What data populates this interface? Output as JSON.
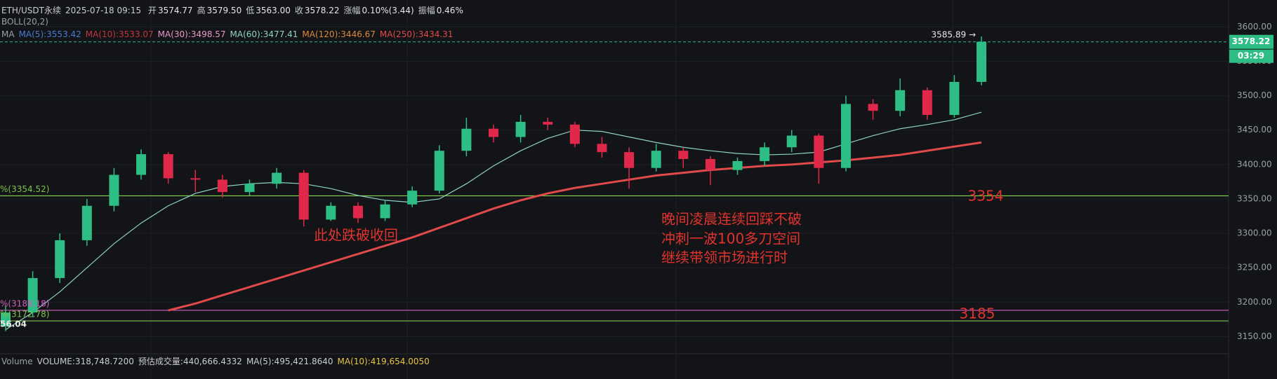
{
  "header": {
    "title": "ETH/USDT永续",
    "time": "2025-07-18 09:15",
    "ohlc": [
      {
        "label": "开",
        "value": "3574.77"
      },
      {
        "label": "高",
        "value": "3579.50"
      },
      {
        "label": "低",
        "value": "3563.00"
      },
      {
        "label": "收",
        "value": "3578.22"
      },
      {
        "label": "涨幅",
        "value": "0.10%(3.44)"
      },
      {
        "label": "振幅",
        "value": "0.46%"
      }
    ],
    "boll": "BOLL(20,2)",
    "ma_label": "MA",
    "ma_items": [
      {
        "text": "MA(5):3553.42",
        "color": "#4a7bd0"
      },
      {
        "text": "MA(10):3533.07",
        "color": "#c1363d"
      },
      {
        "text": "MA(30):3498.57",
        "color": "#e89ac8"
      },
      {
        "text": "MA(60):3477.41",
        "color": "#8fd3c2"
      },
      {
        "text": "MA(120):3446.67",
        "color": "#d98b3a"
      },
      {
        "text": "MA(250):3434.31",
        "color": "#e04a4a"
      }
    ]
  },
  "chart_data": {
    "type": "candlestick",
    "ylim": [
      3125,
      3639
    ],
    "yticks": [
      {
        "value": 3150,
        "label": "3150.00"
      },
      {
        "value": 3200,
        "label": "3200.00"
      },
      {
        "value": 3250,
        "label": "3250.00"
      },
      {
        "value": 3300,
        "label": "3300.00"
      },
      {
        "value": 3350,
        "label": "3350.00"
      },
      {
        "value": 3400,
        "label": "3400.00"
      },
      {
        "value": 3450,
        "label": "3450.00"
      },
      {
        "value": 3500,
        "label": "3500.00"
      },
      {
        "value": 3550,
        "label": "3550.00"
      },
      {
        "value": 3600,
        "label": "3600.00"
      }
    ],
    "up_color": "#2ebd85",
    "down_color": "#e0294a",
    "open": [
      3165,
      3185,
      3235,
      3290,
      3340,
      3385,
      3415,
      3380,
      3378,
      3360,
      3372,
      3388,
      3320,
      3340,
      3322,
      3342,
      3362,
      3420,
      3452,
      3440,
      3462,
      3458,
      3430,
      3418,
      3395,
      3420,
      3408,
      3392,
      3405,
      3425,
      3442,
      3395,
      3488,
      3478,
      3508,
      3472,
      3520
    ],
    "high": [
      3195,
      3245,
      3300,
      3350,
      3395,
      3422,
      3418,
      3392,
      3385,
      3378,
      3395,
      3392,
      3345,
      3345,
      3348,
      3368,
      3428,
      3468,
      3458,
      3472,
      3468,
      3462,
      3440,
      3425,
      3430,
      3425,
      3412,
      3410,
      3432,
      3450,
      3445,
      3500,
      3495,
      3525,
      3512,
      3530,
      3585.89
    ],
    "low": [
      3158,
      3178,
      3228,
      3282,
      3332,
      3378,
      3372,
      3360,
      3352,
      3355,
      3365,
      3310,
      3318,
      3315,
      3318,
      3338,
      3358,
      3412,
      3432,
      3432,
      3450,
      3425,
      3410,
      3365,
      3390,
      3395,
      3370,
      3385,
      3398,
      3418,
      3372,
      3390,
      3465,
      3470,
      3465,
      3468,
      3515
    ],
    "close": [
      3185,
      3235,
      3290,
      3340,
      3385,
      3415,
      3380,
      3378,
      3360,
      3372,
      3388,
      3320,
      3340,
      3322,
      3342,
      3362,
      3420,
      3452,
      3440,
      3462,
      3458,
      3430,
      3418,
      3395,
      3420,
      3408,
      3392,
      3405,
      3425,
      3442,
      3395,
      3488,
      3478,
      3508,
      3472,
      3520,
      3578.22
    ],
    "series": [
      {
        "name": "MA(250)",
        "color": "#e04a4a",
        "width": 3,
        "values": [
          null,
          null,
          null,
          null,
          null,
          null,
          3188,
          3198,
          3210,
          3222,
          3234,
          3246,
          3258,
          3270,
          3282,
          3294,
          3308,
          3322,
          3336,
          3348,
          3358,
          3366,
          3372,
          3378,
          3384,
          3388,
          3392,
          3395,
          3398,
          3400,
          3403,
          3406,
          3410,
          3414,
          3420,
          3426,
          3432
        ]
      },
      {
        "name": "MA(60)",
        "color": "#8fd3c2",
        "width": 1.2,
        "values": [
          3160,
          3185,
          3215,
          3250,
          3285,
          3315,
          3340,
          3358,
          3368,
          3372,
          3374,
          3372,
          3365,
          3355,
          3348,
          3345,
          3350,
          3372,
          3398,
          3420,
          3438,
          3450,
          3448,
          3440,
          3432,
          3425,
          3420,
          3416,
          3414,
          3415,
          3418,
          3430,
          3442,
          3452,
          3458,
          3465,
          3476
        ]
      }
    ],
    "levels": [
      {
        "value": 3354.52,
        "label": "%(3354.52)",
        "color": "#7cc44a"
      },
      {
        "value": 3188.18,
        "label": "%(3188.18)",
        "color": "#d05fc0"
      },
      {
        "value": 3172.78,
        "label": "%(3172.78)",
        "color": "#7cc44a"
      }
    ],
    "last_price": {
      "value": 3578.22,
      "label": "3578.22",
      "countdown": "03:29",
      "color": "#2ebd85"
    },
    "high_tag": "3585.89 →",
    "left_label": "56.04",
    "annotations": [
      "3354",
      "3185",
      "此处跌破收回",
      "晚间凌晨连续回踩不破",
      "冲刺一波100多刀空间",
      "继续带领市场进行时"
    ]
  },
  "volume": {
    "label": "Volume",
    "items": [
      "VOLUME:318,748.7200",
      "预估成交量:440,666.4332",
      "MA(5):495,421.8640",
      "MA(10):419,654.0050"
    ]
  }
}
